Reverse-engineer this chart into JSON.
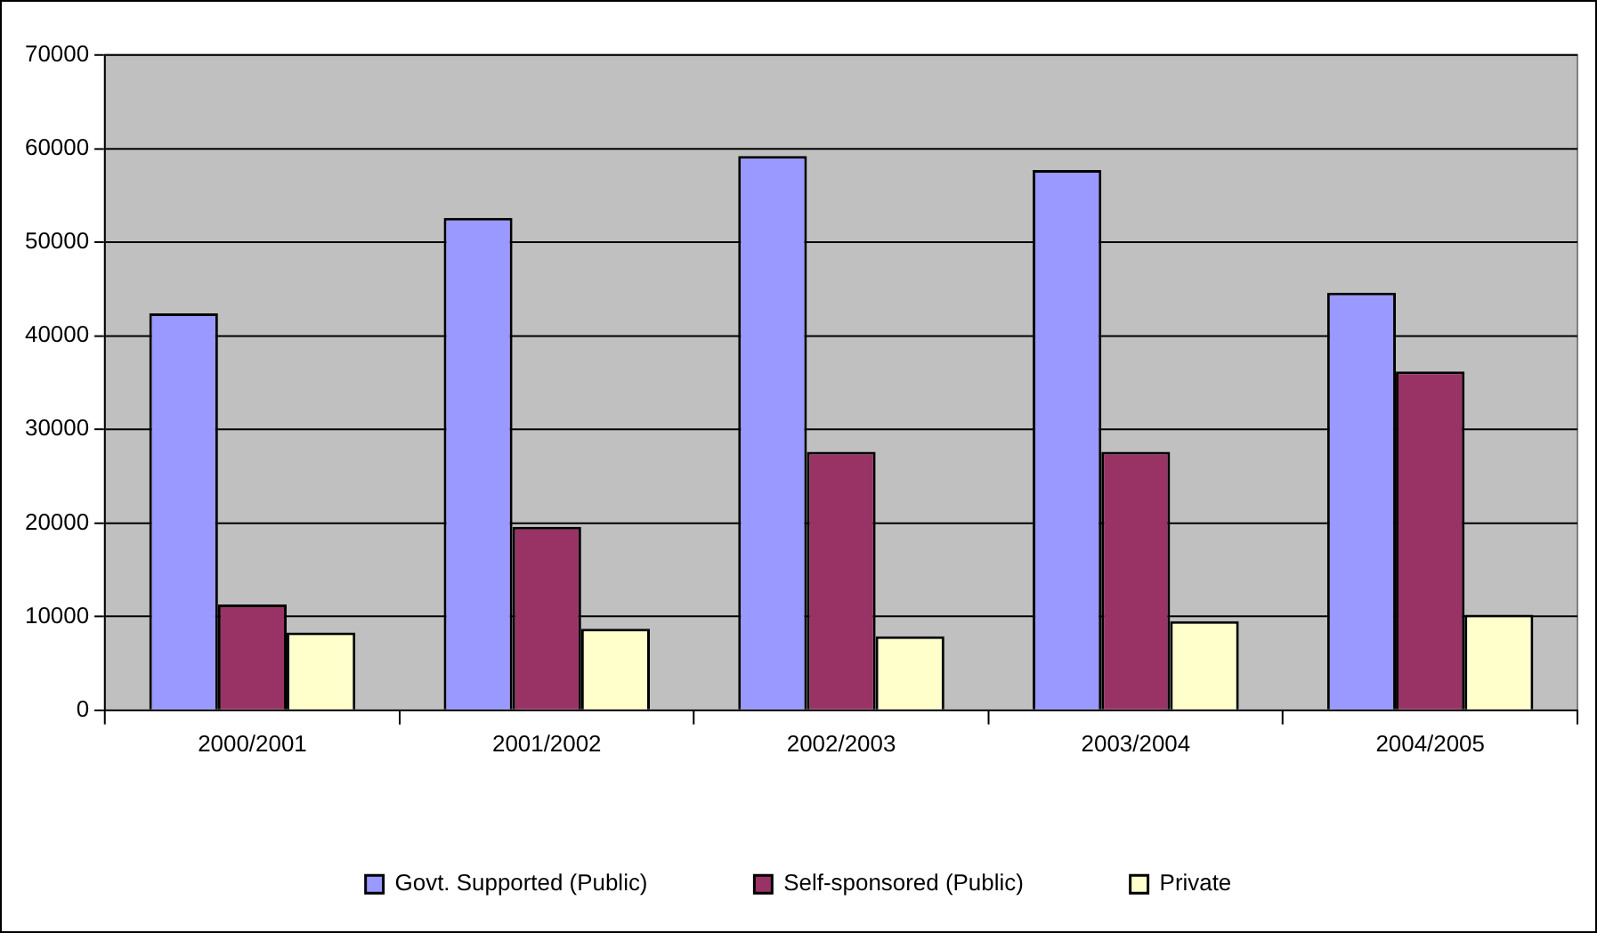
{
  "chart_data": {
    "type": "bar",
    "categories": [
      "2000/2001",
      "2001/2002",
      "2002/2003",
      "2003/2004",
      "2004/2005"
    ],
    "series": [
      {
        "name": "Govt. Supported (Public)",
        "color": "#9999ff",
        "values": [
          42400,
          52600,
          59200,
          57700,
          44600
        ]
      },
      {
        "name": "Self-sponsored (Public)",
        "color": "#993366",
        "values": [
          11300,
          19600,
          27600,
          27600,
          36200
        ]
      },
      {
        "name": "Private",
        "color": "#ffffcc",
        "values": [
          8300,
          8700,
          7900,
          9500,
          10200
        ]
      }
    ],
    "ylim": [
      0,
      70000
    ],
    "yticks": [
      0,
      10000,
      20000,
      30000,
      40000,
      50000,
      60000,
      70000
    ],
    "grid": "y",
    "legend": "bottom"
  }
}
